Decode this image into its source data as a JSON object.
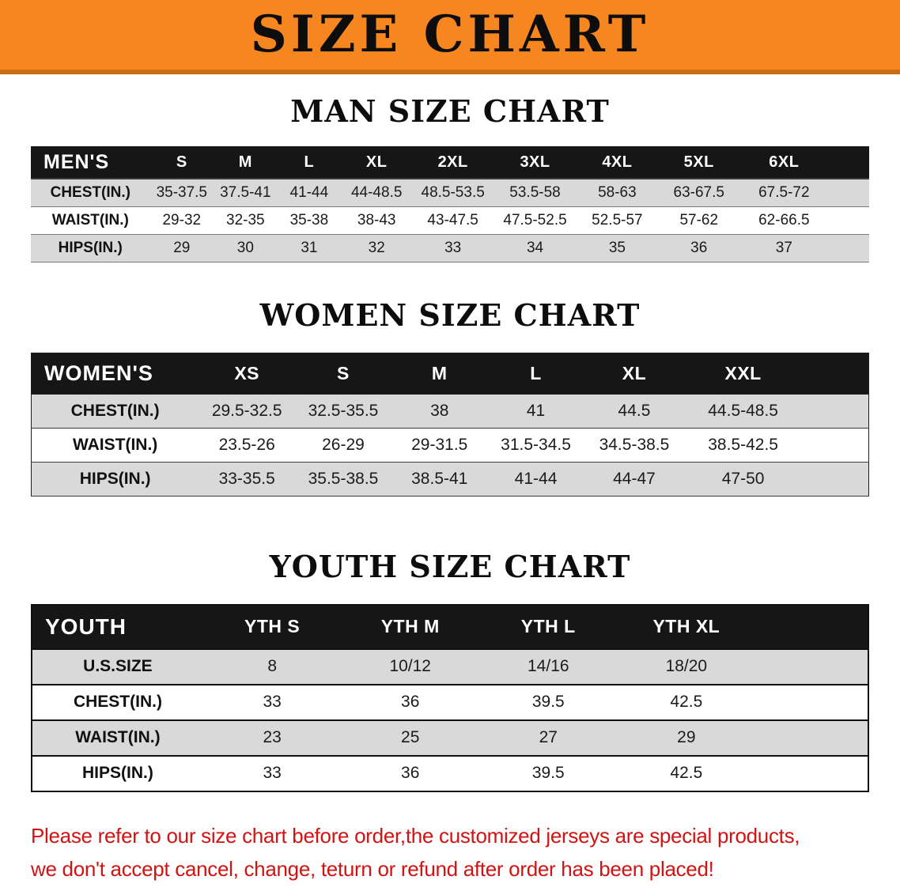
{
  "banner": {
    "title": "SIZE CHART"
  },
  "tables": [
    {
      "heading": "MAN SIZE CHART",
      "header_label": "MEN'S",
      "columns": [
        "S",
        "M",
        "L",
        "XL",
        "2XL",
        "3XL",
        "4XL",
        "5XL",
        "6XL"
      ],
      "rows": [
        {
          "label": "CHEST(IN.)",
          "values": [
            "35-37.5",
            "37.5-41",
            "41-44",
            "44-48.5",
            "48.5-53.5",
            "53.5-58",
            "58-63",
            "63-67.5",
            "67.5-72"
          ]
        },
        {
          "label": "WAIST(IN.)",
          "values": [
            "29-32",
            "32-35",
            "35-38",
            "38-43",
            "43-47.5",
            "47.5-52.5",
            "52.5-57",
            "57-62",
            "62-66.5"
          ]
        },
        {
          "label": "HIPS(IN.)",
          "values": [
            "29",
            "30",
            "31",
            "32",
            "33",
            "34",
            "35",
            "36",
            "37"
          ]
        }
      ]
    },
    {
      "heading": "WOMEN SIZE CHART",
      "header_label": "WOMEN'S",
      "columns": [
        "XS",
        "S",
        "M",
        "L",
        "XL",
        "XXL"
      ],
      "rows": [
        {
          "label": "CHEST(IN.)",
          "values": [
            "29.5-32.5",
            "32.5-35.5",
            "38",
            "41",
            "44.5",
            "44.5-48.5"
          ]
        },
        {
          "label": "WAIST(IN.)",
          "values": [
            "23.5-26",
            "26-29",
            "29-31.5",
            "31.5-34.5",
            "34.5-38.5",
            "38.5-42.5"
          ]
        },
        {
          "label": "HIPS(IN.)",
          "values": [
            "33-35.5",
            "35.5-38.5",
            "38.5-41",
            "41-44",
            "44-47",
            "47-50"
          ]
        }
      ]
    },
    {
      "heading": "YOUTH SIZE CHART",
      "header_label": "YOUTH",
      "columns": [
        "YTH S",
        "YTH M",
        "YTH L",
        "YTH XL"
      ],
      "rows": [
        {
          "label": "U.S.SIZE",
          "values": [
            "8",
            "10/12",
            "14/16",
            "18/20"
          ]
        },
        {
          "label": "CHEST(IN.)",
          "values": [
            "33",
            "36",
            "39.5",
            "42.5"
          ]
        },
        {
          "label": "WAIST(IN.)",
          "values": [
            "23",
            "25",
            "27",
            "29"
          ]
        },
        {
          "label": "HIPS(IN.)",
          "values": [
            "33",
            "36",
            "39.5",
            "42.5"
          ]
        }
      ]
    }
  ],
  "footer_note": {
    "line1": "Please refer to our size chart before order,the customized jerseys are special products,",
    "line2": "we don't accept cancel, change, teturn or refund after order has been placed!"
  },
  "colors": {
    "banner_bg": "#f6861f",
    "table_header_bg": "#161616",
    "row_stripe": "#d9d9d9",
    "note_text": "#d31212"
  }
}
